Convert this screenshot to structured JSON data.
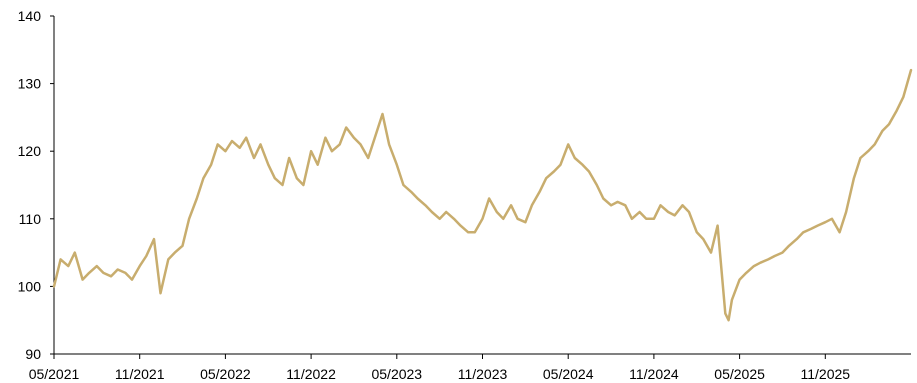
{
  "chart_data": {
    "type": "line",
    "title": "",
    "xlabel": "",
    "ylabel": "",
    "ylim": [
      90,
      140
    ],
    "yticks": [
      90,
      100,
      110,
      120,
      130,
      140
    ],
    "xlim": [
      "2021-05",
      "2026-05"
    ],
    "xticks": [
      "05/2021",
      "11/2021",
      "05/2022",
      "11/2022",
      "05/2023",
      "11/2023",
      "05/2024",
      "11/2024",
      "05/2025",
      "11/2025"
    ],
    "grid": false,
    "legend": "none",
    "series": [
      {
        "color": "#c8ad6e",
        "x": [
          "2021-05-01",
          "2021-05-15",
          "2021-06-01",
          "2021-06-15",
          "2021-07-01",
          "2021-07-15",
          "2021-08-01",
          "2021-08-15",
          "2021-09-01",
          "2021-09-15",
          "2021-10-01",
          "2021-10-15",
          "2021-11-01",
          "2021-11-15",
          "2021-12-01",
          "2021-12-15",
          "2022-01-01",
          "2022-01-15",
          "2022-02-01",
          "2022-02-15",
          "2022-03-01",
          "2022-03-15",
          "2022-04-01",
          "2022-04-15",
          "2022-05-01",
          "2022-05-15",
          "2022-06-01",
          "2022-06-15",
          "2022-07-01",
          "2022-07-15",
          "2022-08-01",
          "2022-08-15",
          "2022-09-01",
          "2022-09-15",
          "2022-10-01",
          "2022-10-15",
          "2022-11-01",
          "2022-11-15",
          "2022-12-01",
          "2022-12-15",
          "2023-01-01",
          "2023-01-15",
          "2023-02-01",
          "2023-02-15",
          "2023-03-01",
          "2023-03-15",
          "2023-04-01",
          "2023-04-15",
          "2023-05-01",
          "2023-05-15",
          "2023-06-01",
          "2023-06-15",
          "2023-07-01",
          "2023-07-15",
          "2023-08-01",
          "2023-08-15",
          "2023-09-01",
          "2023-09-15",
          "2023-10-01",
          "2023-10-15",
          "2023-11-01",
          "2023-11-15",
          "2023-12-01",
          "2023-12-15",
          "2024-01-01",
          "2024-01-15",
          "2024-02-01",
          "2024-02-15",
          "2024-03-01",
          "2024-03-15",
          "2024-04-01",
          "2024-04-15",
          "2024-05-01",
          "2024-05-15",
          "2024-06-01",
          "2024-06-15",
          "2024-07-01",
          "2024-07-15",
          "2024-08-01",
          "2024-08-15",
          "2024-09-01",
          "2024-09-15",
          "2024-10-01",
          "2024-10-15",
          "2024-11-01",
          "2024-11-15",
          "2024-12-01",
          "2024-12-15",
          "2025-01-01",
          "2025-01-15",
          "2025-02-01",
          "2025-02-15",
          "2025-03-01",
          "2025-03-15",
          "2025-04-01",
          "2025-04-08",
          "2025-04-15",
          "2025-05-01",
          "2025-05-15",
          "2025-06-01",
          "2025-06-15",
          "2025-07-01",
          "2025-07-15",
          "2025-08-01",
          "2025-08-15",
          "2025-09-01",
          "2025-09-15",
          "2025-10-01",
          "2025-10-15",
          "2025-11-01",
          "2025-11-15",
          "2025-12-01",
          "2025-12-15",
          "2026-01-01",
          "2026-01-15",
          "2026-02-01",
          "2026-02-15",
          "2026-03-01",
          "2026-03-15",
          "2026-04-01",
          "2026-04-15",
          "2026-05-01"
        ],
        "values": [
          100.0,
          104.0,
          103.0,
          105.0,
          101.0,
          102.0,
          103.0,
          102.0,
          101.5,
          102.5,
          102.0,
          101.0,
          103.0,
          104.5,
          107.0,
          99.0,
          104.0,
          105.0,
          106.0,
          110.0,
          113.0,
          116.0,
          118.0,
          121.0,
          120.0,
          121.5,
          120.5,
          122.0,
          119.0,
          121.0,
          118.0,
          116.0,
          115.0,
          119.0,
          116.0,
          115.0,
          120.0,
          118.0,
          122.0,
          120.0,
          121.0,
          123.5,
          122.0,
          121.0,
          119.0,
          122.0,
          125.5,
          121.0,
          118.0,
          115.0,
          114.0,
          113.0,
          112.0,
          111.0,
          110.0,
          111.0,
          110.0,
          109.0,
          108.0,
          108.0,
          110.0,
          113.0,
          111.0,
          110.0,
          112.0,
          110.0,
          109.5,
          112.0,
          114.0,
          116.0,
          117.0,
          118.0,
          121.0,
          119.0,
          118.0,
          117.0,
          115.0,
          113.0,
          112.0,
          112.5,
          112.0,
          110.0,
          111.0,
          110.0,
          110.0,
          112.0,
          111.0,
          110.5,
          112.0,
          111.0,
          108.0,
          107.0,
          105.0,
          109.0,
          96.0,
          95.0,
          98.0,
          101.0,
          102.0,
          103.0,
          103.5,
          104.0,
          104.5,
          105.0,
          106.0,
          107.0,
          108.0,
          108.5,
          109.0,
          109.5,
          110.0,
          108.0,
          111.0,
          116.0,
          119.0,
          120.0,
          121.0,
          123.0,
          124.0,
          126.0,
          128.0,
          132.0
        ]
      }
    ]
  }
}
